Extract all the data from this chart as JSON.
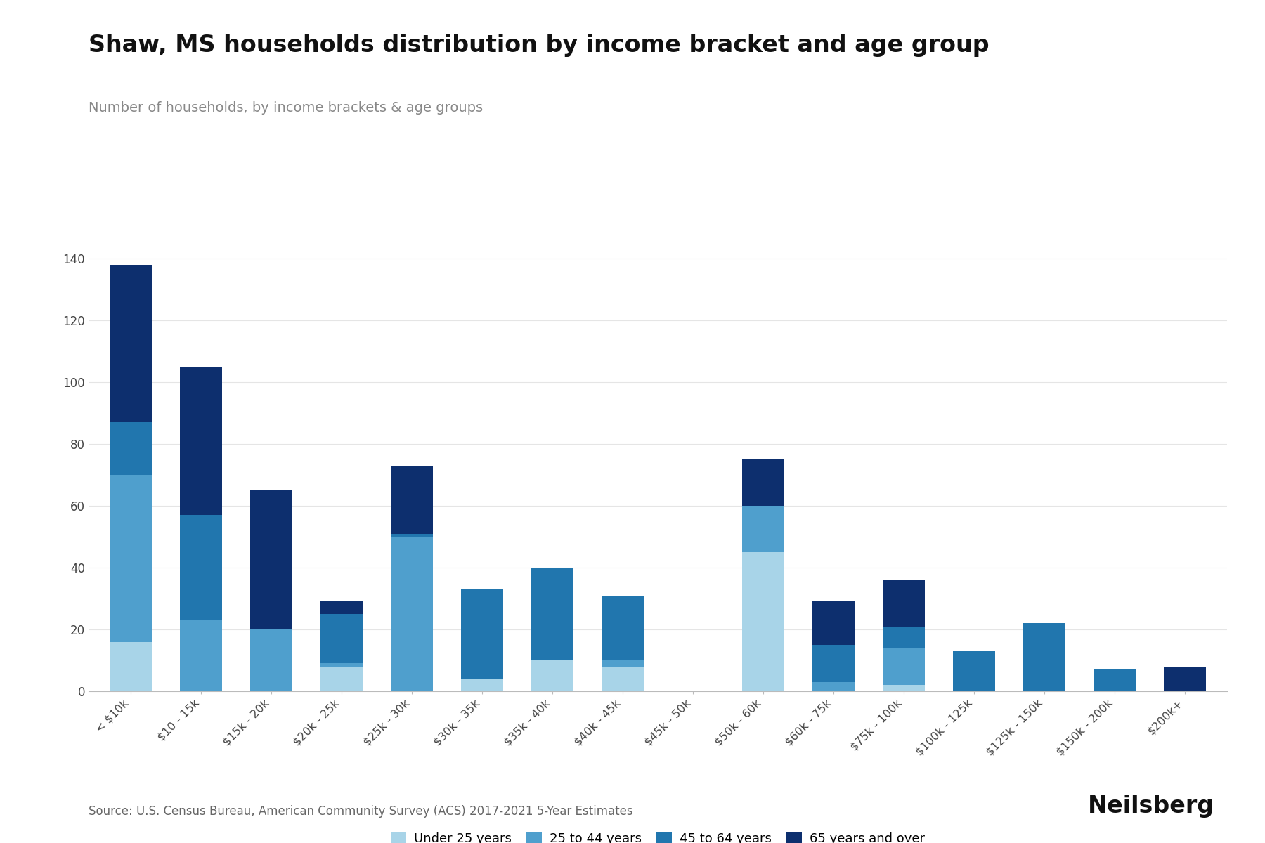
{
  "title": "Shaw, MS households distribution by income bracket and age group",
  "subtitle": "Number of households, by income brackets & age groups",
  "source": "Source: U.S. Census Bureau, American Community Survey (ACS) 2017-2021 5-Year Estimates",
  "categories": [
    "< $10k",
    "$10 - 15k",
    "$15k - 20k",
    "$20k - 25k",
    "$25k - 30k",
    "$30k - 35k",
    "$35k - 40k",
    "$40k - 45k",
    "$45k - 50k",
    "$50k - 60k",
    "$60k - 75k",
    "$75k - 100k",
    "$100k - 125k",
    "$125k - 150k",
    "$150k - 200k",
    "$200k+"
  ],
  "under25": [
    16,
    0,
    0,
    8,
    0,
    4,
    10,
    8,
    0,
    45,
    0,
    2,
    0,
    0,
    0,
    0
  ],
  "age25_44": [
    54,
    23,
    20,
    1,
    50,
    0,
    0,
    2,
    0,
    15,
    3,
    12,
    0,
    0,
    0,
    0
  ],
  "age45_64": [
    17,
    34,
    0,
    16,
    1,
    29,
    30,
    21,
    0,
    0,
    12,
    7,
    13,
    22,
    7,
    0
  ],
  "age65over": [
    51,
    48,
    45,
    4,
    22,
    0,
    0,
    0,
    0,
    15,
    14,
    15,
    0,
    0,
    0,
    8
  ],
  "colors": {
    "under25": "#a8d4e8",
    "age25_44": "#4f9fcd",
    "age45_64": "#2176ae",
    "age65over": "#0d2f6e"
  },
  "legend_labels": [
    "Under 25 years",
    "25 to 44 years",
    "45 to 64 years",
    "65 years and over"
  ],
  "ylim": [
    0,
    150
  ],
  "yticks": [
    0,
    20,
    40,
    60,
    80,
    100,
    120,
    140
  ],
  "background_color": "#ffffff",
  "title_fontsize": 24,
  "subtitle_fontsize": 14,
  "source_fontsize": 12
}
